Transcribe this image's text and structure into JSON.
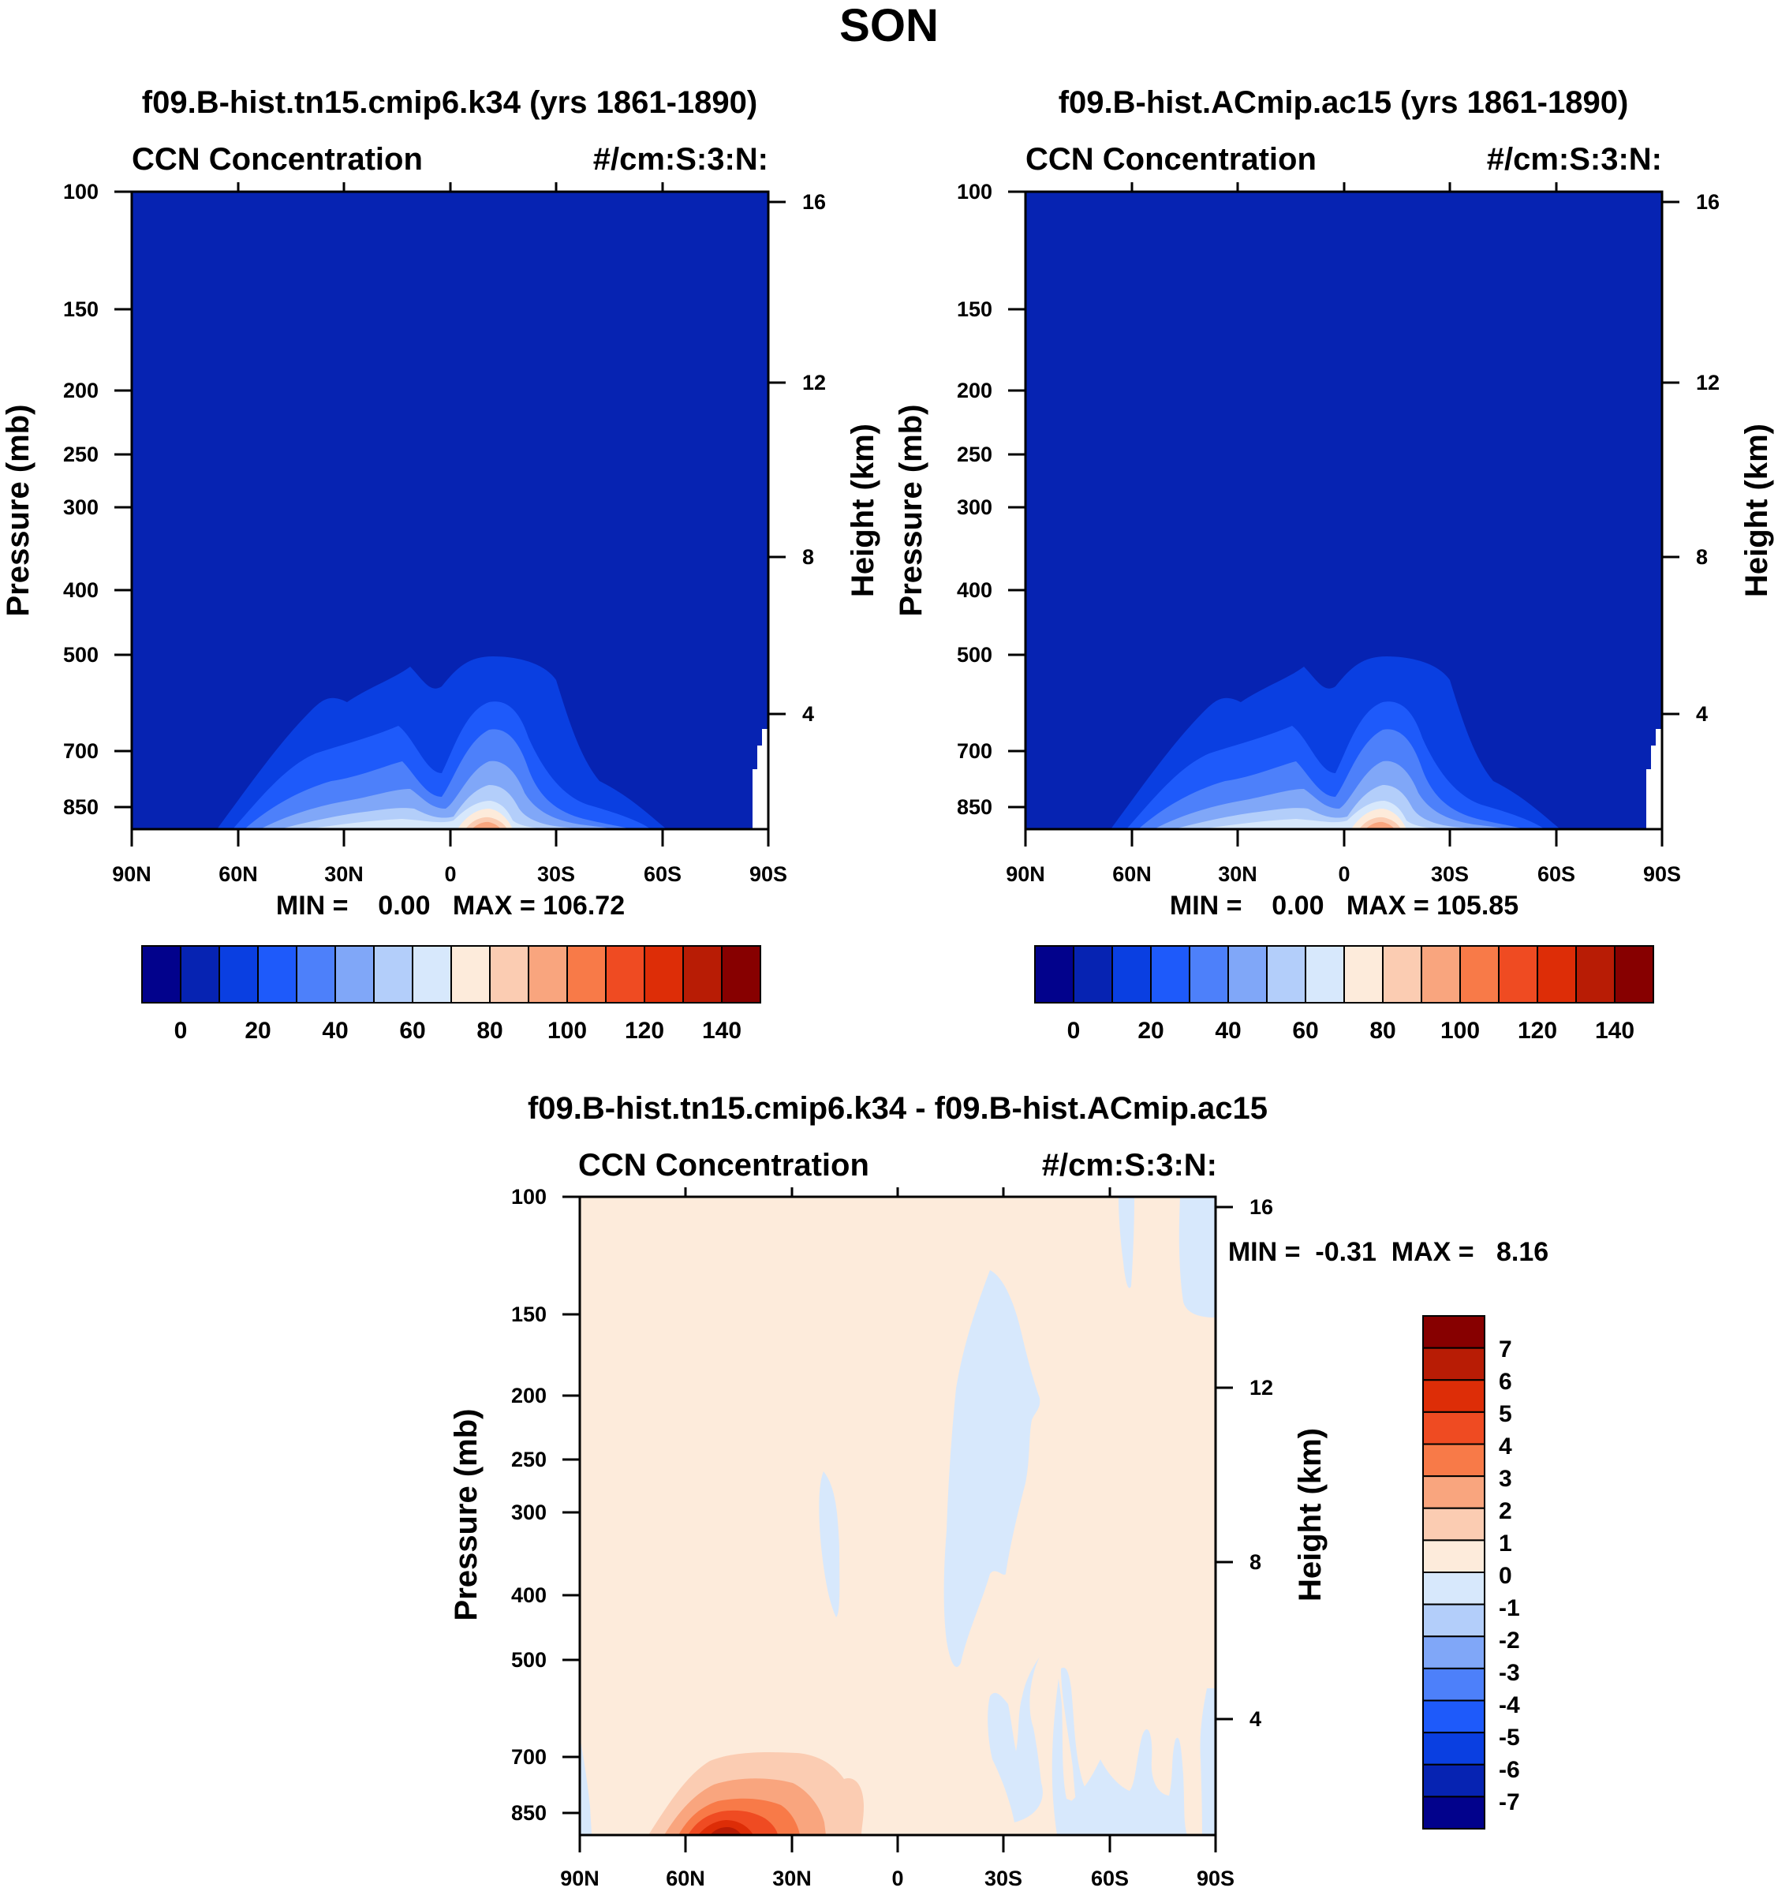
{
  "page": {
    "title": "SON"
  },
  "colors": {
    "field_levels": [
      "#02028c",
      "#0623b2",
      "#0a3fe1",
      "#1e5afa",
      "#4d80fa",
      "#80a7f8",
      "#b3cefa",
      "#d7e8fc",
      "#fdebdb",
      "#fbccb2",
      "#f9a57e",
      "#f87a48",
      "#ef4b22",
      "#dd2d07",
      "#b81c05",
      "#870000"
    ],
    "diff_levels": [
      "#02028c",
      "#0623b2",
      "#0a3fe1",
      "#1e5afa",
      "#4d80fa",
      "#80a7f8",
      "#b3cefa",
      "#d7e8fc",
      "#fdebdb",
      "#fbccb2",
      "#f9a57e",
      "#f87a48",
      "#ef4b22",
      "#dd2d07",
      "#b81c05",
      "#870000"
    ]
  },
  "chart_data": [
    {
      "type": "heatmap",
      "title": "f09.B-hist.tn15.cmip6.k34 (yrs 1861-1890)",
      "variable_label": "CCN Concentration",
      "units_label": "#/cm:S:3:N:",
      "ylabel": "Pressure (mb)",
      "ylabel_right": "Height (km)",
      "x_ticks": [
        "90N",
        "60N",
        "30N",
        "0",
        "30S",
        "60S",
        "90S"
      ],
      "y_ticks": [
        "100",
        "150",
        "200",
        "250",
        "300",
        "400",
        "500",
        "700",
        "850"
      ],
      "y_ticks_right": [
        "16",
        "12",
        "8",
        "4"
      ],
      "xlim": [
        90,
        -90
      ],
      "ylim": [
        100,
        925
      ],
      "min_max_label": "MIN =    0.00   MAX = 106.72",
      "min": 0.0,
      "max": 106.72,
      "colorbar_labels": [
        "0",
        "20",
        "40",
        "60",
        "80",
        "100",
        "120",
        "140"
      ],
      "contour_levels": [
        0,
        10,
        20,
        30,
        40,
        50,
        60,
        70,
        80,
        90,
        100,
        110,
        120,
        130,
        140
      ]
    },
    {
      "type": "heatmap",
      "title": "f09.B-hist.ACmip.ac15 (yrs 1861-1890)",
      "variable_label": "CCN Concentration",
      "units_label": "#/cm:S:3:N:",
      "ylabel": "Pressure (mb)",
      "ylabel_right": "Height (km)",
      "x_ticks": [
        "90N",
        "60N",
        "30N",
        "0",
        "30S",
        "60S",
        "90S"
      ],
      "y_ticks": [
        "100",
        "150",
        "200",
        "250",
        "300",
        "400",
        "500",
        "700",
        "850"
      ],
      "y_ticks_right": [
        "16",
        "12",
        "8",
        "4"
      ],
      "xlim": [
        90,
        -90
      ],
      "ylim": [
        100,
        925
      ],
      "min_max_label": "MIN =    0.00   MAX = 105.85",
      "min": 0.0,
      "max": 105.85,
      "colorbar_labels": [
        "0",
        "20",
        "40",
        "60",
        "80",
        "100",
        "120",
        "140"
      ],
      "contour_levels": [
        0,
        10,
        20,
        30,
        40,
        50,
        60,
        70,
        80,
        90,
        100,
        110,
        120,
        130,
        140
      ]
    },
    {
      "type": "heatmap",
      "title": "f09.B-hist.tn15.cmip6.k34 - f09.B-hist.ACmip.ac15",
      "variable_label": "CCN Concentration",
      "units_label": "#/cm:S:3:N:",
      "ylabel": "Pressure (mb)",
      "ylabel_right": "Height (km)",
      "x_ticks": [
        "90N",
        "60N",
        "30N",
        "0",
        "30S",
        "60S",
        "90S"
      ],
      "y_ticks": [
        "100",
        "150",
        "200",
        "250",
        "300",
        "400",
        "500",
        "700",
        "850"
      ],
      "y_ticks_right": [
        "16",
        "12",
        "8",
        "4"
      ],
      "xlim": [
        90,
        -90
      ],
      "ylim": [
        100,
        925
      ],
      "min_max_label": "MIN =  -0.31  MAX =   8.16",
      "min": -0.31,
      "max": 8.16,
      "colorbar_labels": [
        "7",
        "6",
        "5",
        "4",
        "3",
        "2",
        "1",
        "0",
        "-1",
        "-2",
        "-3",
        "-4",
        "-5",
        "-6",
        "-7"
      ],
      "contour_levels": [
        -7,
        -6,
        -5,
        -4,
        -3,
        -2,
        -1,
        0,
        1,
        2,
        3,
        4,
        5,
        6,
        7
      ]
    }
  ]
}
